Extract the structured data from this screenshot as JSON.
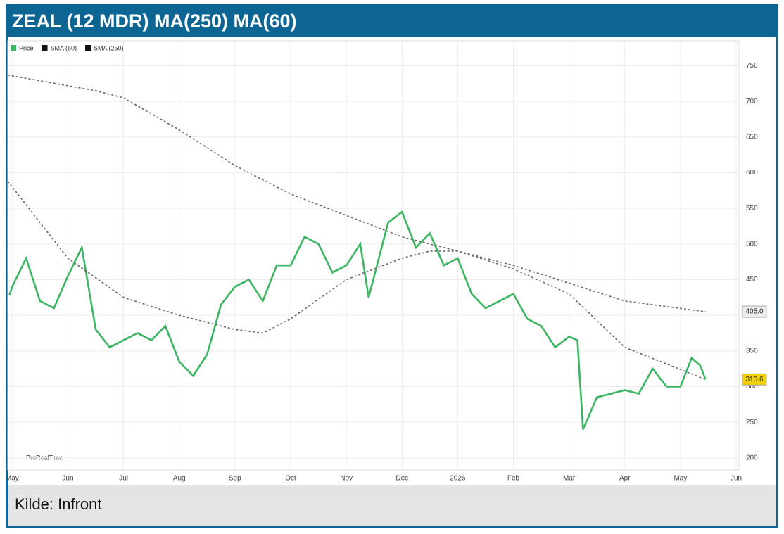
{
  "chart_data": {
    "type": "line",
    "title": "ZEAL (12 MDR) MA(250) MA(60)",
    "source": "Kilde: Infront",
    "watermark": "ProRealTime",
    "xlim": [
      -0.08,
      13.05
    ],
    "xticks": [
      {
        "value": 0,
        "label": "May"
      },
      {
        "value": 1,
        "label": "Jun"
      },
      {
        "value": 2,
        "label": "Jul"
      },
      {
        "value": 3,
        "label": "Aug"
      },
      {
        "value": 4,
        "label": "Sep"
      },
      {
        "value": 5,
        "label": "Oct"
      },
      {
        "value": 6,
        "label": "Nov"
      },
      {
        "value": 7,
        "label": "Dec"
      },
      {
        "value": 8,
        "label": "2026"
      },
      {
        "value": 9,
        "label": "Feb"
      },
      {
        "value": 10,
        "label": "Mar"
      },
      {
        "value": 11,
        "label": "Apr"
      },
      {
        "value": 12,
        "label": "May"
      },
      {
        "value": 13,
        "label": "Jun"
      }
    ],
    "ylim": [
      183,
      785
    ],
    "yticks": [
      200,
      250,
      300,
      350,
      400,
      450,
      500,
      550,
      600,
      650,
      700,
      750
    ],
    "grid": true,
    "series": [
      {
        "name": "Price",
        "color": "#3cb563",
        "dashed": false,
        "x": [
          -0.05,
          0,
          0.25,
          0.5,
          0.75,
          1,
          1.25,
          1.5,
          1.75,
          2,
          2.25,
          2.5,
          2.75,
          3,
          3.25,
          3.5,
          3.75,
          4,
          4.25,
          4.5,
          4.75,
          5,
          5.25,
          5.5,
          5.75,
          6,
          6.25,
          6.4,
          6.75,
          7,
          7.25,
          7.5,
          7.75,
          8,
          8.25,
          8.5,
          8.75,
          9,
          9.25,
          9.5,
          9.75,
          10,
          10.15,
          10.25,
          10.5,
          10.75,
          11,
          11.25,
          11.5,
          11.75,
          12,
          12.2,
          12.35,
          12.45
        ],
        "values": [
          428,
          440,
          480,
          420,
          410,
          455,
          495,
          380,
          355,
          365,
          375,
          365,
          385,
          335,
          315,
          345,
          415,
          440,
          450,
          420,
          470,
          470,
          510,
          500,
          460,
          470,
          500,
          425,
          530,
          545,
          495,
          515,
          470,
          480,
          430,
          410,
          420,
          430,
          395,
          385,
          355,
          370,
          365,
          240,
          285,
          290,
          295,
          290,
          325,
          300,
          300,
          340,
          330,
          310
        ],
        "last_label": "310.6",
        "label_bg": "#f5d000"
      },
      {
        "name": "SMA (60)",
        "color": "#666666",
        "dashed": true,
        "x": [
          -0.08,
          1,
          2,
          3,
          4,
          4.5,
          5,
          6,
          7,
          7.5,
          8,
          9,
          10,
          11,
          12.45
        ],
        "values": [
          588,
          480,
          425,
          400,
          380,
          375,
          395,
          450,
          480,
          490,
          490,
          465,
          430,
          355,
          310
        ]
      },
      {
        "name": "SMA (250)",
        "color": "#666666",
        "dashed": true,
        "x": [
          -0.08,
          1.5,
          2,
          3,
          4,
          5,
          6,
          7,
          8,
          9,
          10,
          11,
          12.45
        ],
        "values": [
          737,
          715,
          705,
          660,
          610,
          570,
          540,
          510,
          490,
          470,
          445,
          420,
          405
        ],
        "last_label": "405.0",
        "label_bg": "#eeeeee"
      }
    ]
  }
}
